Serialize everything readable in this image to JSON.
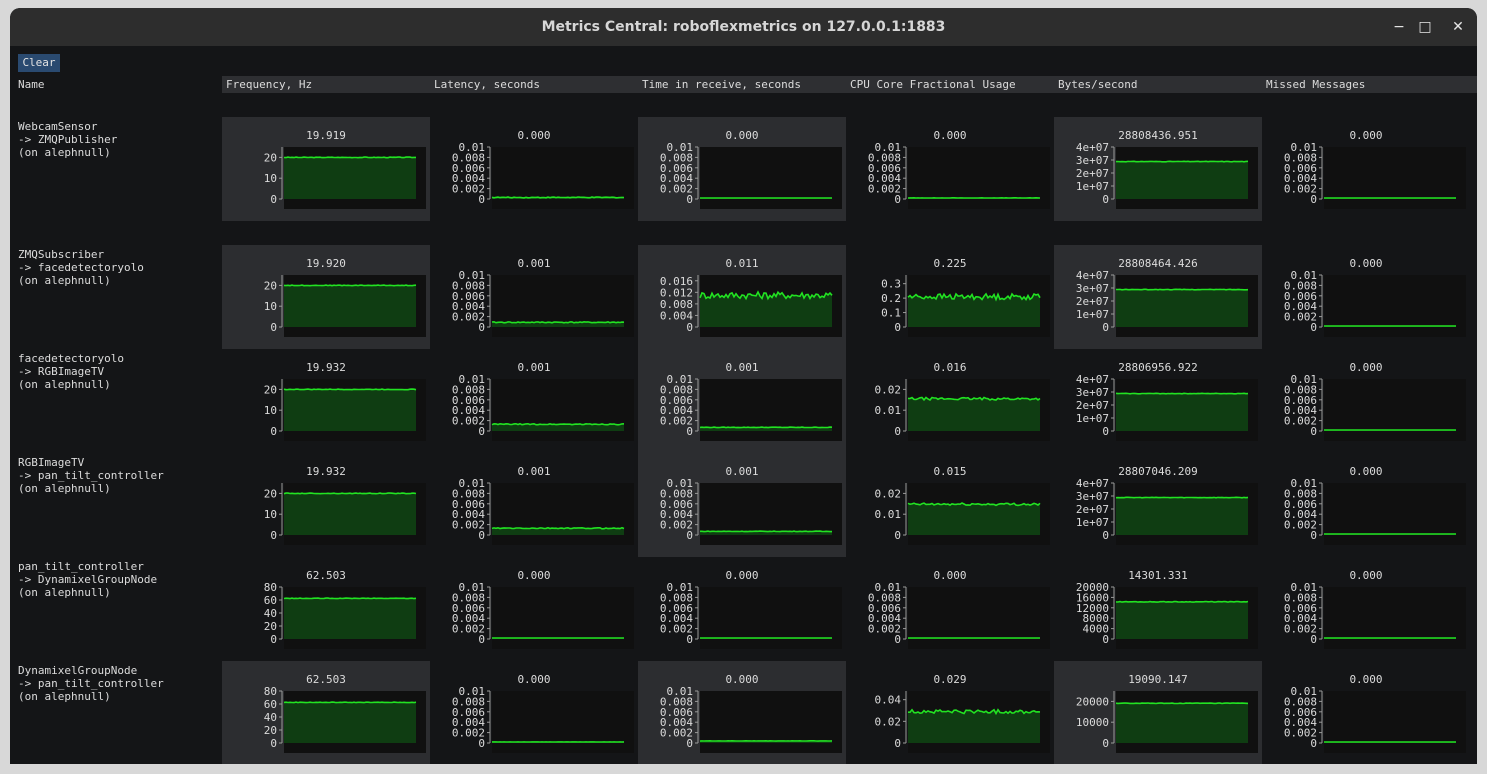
{
  "window": {
    "title": "Metrics Central: roboflexmetrics on 127.0.0.1:1883",
    "controls": {
      "minimize": "−",
      "maximize": "□",
      "close": "✕"
    }
  },
  "toolbar": {
    "clear_label": "Clear"
  },
  "columns": [
    "Name",
    "Frequency, Hz",
    "Latency, seconds",
    "Time in receive, seconds",
    "CPU Core Fractional Usage",
    "Bytes/second",
    "Missed Messages"
  ],
  "colors": {
    "line": "#22e222",
    "fill": "#0f3d12",
    "plot_bg": "#101010",
    "panel_shade": "#2c2d30"
  },
  "rows": [
    {
      "name": [
        "WebcamSensor",
        "-> ZMQPublisher",
        "(on alephnull)"
      ],
      "shaded": [
        true,
        false,
        true,
        false,
        true,
        false
      ],
      "metrics": [
        {
          "value": "19.919",
          "ticks": [
            "20",
            "10",
            "0"
          ],
          "max": 25,
          "level": 20,
          "noise": 0.15
        },
        {
          "value": "0.000",
          "ticks": [
            "0.01",
            "0.008",
            "0.006",
            "0.004",
            "0.002",
            "0"
          ],
          "max": 0.01,
          "level": 0.0003,
          "noise": 8e-05
        },
        {
          "value": "0.000",
          "ticks": [
            "0.01",
            "0.008",
            "0.006",
            "0.004",
            "0.002",
            "0"
          ],
          "max": 0.01,
          "level": 0.0001,
          "noise": 2e-05
        },
        {
          "value": "0.000",
          "ticks": [
            "0.01",
            "0.008",
            "0.006",
            "0.004",
            "0.002",
            "0"
          ],
          "max": 0.01,
          "level": 0.0002,
          "noise": 3e-05
        },
        {
          "value": "28808436.951",
          "ticks": [
            "4e+07",
            "3e+07",
            "2e+07",
            "1e+07",
            "0"
          ],
          "max": 40000000,
          "level": 28808436,
          "noise": 200000
        },
        {
          "value": "0.000",
          "ticks": [
            "0.01",
            "0.008",
            "0.006",
            "0.004",
            "0.002",
            "0"
          ],
          "max": 0.01,
          "level": 0.0001,
          "noise": 0
        }
      ]
    },
    {
      "name": [
        "ZMQSubscriber",
        "-> facedetectoryolo",
        "(on alephnull)"
      ],
      "shaded": [
        true,
        false,
        true,
        false,
        true,
        false
      ],
      "metrics": [
        {
          "value": "19.920",
          "ticks": [
            "20",
            "10",
            "0"
          ],
          "max": 25,
          "level": 20,
          "noise": 0.15
        },
        {
          "value": "0.001",
          "ticks": [
            "0.01",
            "0.008",
            "0.006",
            "0.004",
            "0.002",
            "0"
          ],
          "max": 0.01,
          "level": 0.0009,
          "noise": 0.0001
        },
        {
          "value": "0.011",
          "ticks": [
            "0.016",
            "0.012",
            "0.008",
            "0.004",
            "0"
          ],
          "max": 0.018,
          "level": 0.011,
          "noise": 0.0012
        },
        {
          "value": "0.225",
          "ticks": [
            "0.3",
            "0.2",
            "0.1",
            "0"
          ],
          "max": 0.36,
          "level": 0.21,
          "noise": 0.02
        },
        {
          "value": "28808464.426",
          "ticks": [
            "4e+07",
            "3e+07",
            "2e+07",
            "1e+07",
            "0"
          ],
          "max": 40000000,
          "level": 28808464,
          "noise": 200000
        },
        {
          "value": "0.000",
          "ticks": [
            "0.01",
            "0.008",
            "0.006",
            "0.004",
            "0.002",
            "0"
          ],
          "max": 0.01,
          "level": 0.0001,
          "noise": 0
        }
      ]
    },
    {
      "name": [
        "facedetectoryolo",
        "-> RGBImageTV",
        "(on alephnull)"
      ],
      "shaded": [
        false,
        false,
        true,
        false,
        false,
        false
      ],
      "metrics": [
        {
          "value": "19.932",
          "ticks": [
            "20",
            "10",
            "0"
          ],
          "max": 25,
          "level": 20,
          "noise": 0.15
        },
        {
          "value": "0.001",
          "ticks": [
            "0.01",
            "0.008",
            "0.006",
            "0.004",
            "0.002",
            "0"
          ],
          "max": 0.01,
          "level": 0.0013,
          "noise": 0.0001
        },
        {
          "value": "0.001",
          "ticks": [
            "0.01",
            "0.008",
            "0.006",
            "0.004",
            "0.002",
            "0"
          ],
          "max": 0.01,
          "level": 0.0007,
          "noise": 5e-05
        },
        {
          "value": "0.016",
          "ticks": [
            "0.02",
            "0.01",
            "0"
          ],
          "max": 0.025,
          "level": 0.0155,
          "noise": 0.0006
        },
        {
          "value": "28806956.922",
          "ticks": [
            "4e+07",
            "3e+07",
            "2e+07",
            "1e+07",
            "0"
          ],
          "max": 40000000,
          "level": 28806956,
          "noise": 200000
        },
        {
          "value": "0.000",
          "ticks": [
            "0.01",
            "0.008",
            "0.006",
            "0.004",
            "0.002",
            "0"
          ],
          "max": 0.01,
          "level": 0.0001,
          "noise": 0
        }
      ]
    },
    {
      "name": [
        "RGBImageTV",
        "-> pan_tilt_controller",
        "(on alephnull)"
      ],
      "shaded": [
        false,
        false,
        true,
        false,
        false,
        false
      ],
      "metrics": [
        {
          "value": "19.932",
          "ticks": [
            "20",
            "10",
            "0"
          ],
          "max": 25,
          "level": 20,
          "noise": 0.15
        },
        {
          "value": "0.001",
          "ticks": [
            "0.01",
            "0.008",
            "0.006",
            "0.004",
            "0.002",
            "0"
          ],
          "max": 0.01,
          "level": 0.0013,
          "noise": 0.0001
        },
        {
          "value": "0.001",
          "ticks": [
            "0.01",
            "0.008",
            "0.006",
            "0.004",
            "0.002",
            "0"
          ],
          "max": 0.01,
          "level": 0.0007,
          "noise": 5e-05
        },
        {
          "value": "0.015",
          "ticks": [
            "0.02",
            "0.01",
            "0"
          ],
          "max": 0.025,
          "level": 0.0148,
          "noise": 0.0006
        },
        {
          "value": "28807046.209",
          "ticks": [
            "4e+07",
            "3e+07",
            "2e+07",
            "1e+07",
            "0"
          ],
          "max": 40000000,
          "level": 28807046,
          "noise": 200000
        },
        {
          "value": "0.000",
          "ticks": [
            "0.01",
            "0.008",
            "0.006",
            "0.004",
            "0.002",
            "0"
          ],
          "max": 0.01,
          "level": 0.0001,
          "noise": 0
        }
      ]
    },
    {
      "name": [
        "pan_tilt_controller",
        "-> DynamixelGroupNode",
        "(on alephnull)"
      ],
      "shaded": [
        false,
        false,
        false,
        false,
        false,
        false
      ],
      "metrics": [
        {
          "value": "62.503",
          "ticks": [
            "80",
            "60",
            "40",
            "20",
            "0"
          ],
          "max": 80,
          "level": 62.5,
          "noise": 0.4
        },
        {
          "value": "0.000",
          "ticks": [
            "0.01",
            "0.008",
            "0.006",
            "0.004",
            "0.002",
            "0"
          ],
          "max": 0.01,
          "level": 0.0001,
          "noise": 0
        },
        {
          "value": "0.000",
          "ticks": [
            "0.01",
            "0.008",
            "0.006",
            "0.004",
            "0.002",
            "0"
          ],
          "max": 0.01,
          "level": 0.0001,
          "noise": 0
        },
        {
          "value": "0.000",
          "ticks": [
            "0.01",
            "0.008",
            "0.006",
            "0.004",
            "0.002",
            "0"
          ],
          "max": 0.01,
          "level": 0.0002,
          "noise": 0
        },
        {
          "value": "14301.331",
          "ticks": [
            "20000",
            "16000",
            "12000",
            "8000",
            "4000",
            "0"
          ],
          "max": 20000,
          "level": 14301,
          "noise": 120
        },
        {
          "value": "0.000",
          "ticks": [
            "0.01",
            "0.008",
            "0.006",
            "0.004",
            "0.002",
            "0"
          ],
          "max": 0.01,
          "level": 0.0001,
          "noise": 0
        }
      ]
    },
    {
      "name": [
        "DynamixelGroupNode",
        "-> pan_tilt_controller",
        "(on alephnull)"
      ],
      "shaded": [
        true,
        false,
        true,
        false,
        true,
        false
      ],
      "metrics": [
        {
          "value": "62.503",
          "ticks": [
            "80",
            "60",
            "40",
            "20",
            "0"
          ],
          "max": 80,
          "level": 62.5,
          "noise": 0.4
        },
        {
          "value": "0.000",
          "ticks": [
            "0.01",
            "0.008",
            "0.006",
            "0.004",
            "0.002",
            "0"
          ],
          "max": 0.01,
          "level": 0.0002,
          "noise": 2e-05
        },
        {
          "value": "0.000",
          "ticks": [
            "0.01",
            "0.008",
            "0.006",
            "0.004",
            "0.002",
            "0"
          ],
          "max": 0.01,
          "level": 0.0004,
          "noise": 3e-05
        },
        {
          "value": "0.029",
          "ticks": [
            "0.04",
            "0.02",
            "0"
          ],
          "max": 0.048,
          "level": 0.029,
          "noise": 0.0018
        },
        {
          "value": "19090.147",
          "ticks": [
            "20000",
            "10000",
            "0"
          ],
          "max": 25000,
          "level": 19090,
          "noise": 120
        },
        {
          "value": "0.000",
          "ticks": [
            "0.01",
            "0.008",
            "0.006",
            "0.004",
            "0.002",
            "0"
          ],
          "max": 0.01,
          "level": 0.0001,
          "noise": 0
        }
      ]
    }
  ]
}
